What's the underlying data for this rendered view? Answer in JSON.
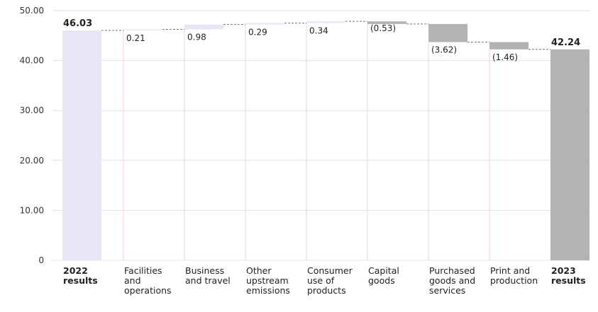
{
  "chart_data": {
    "type": "bar",
    "subtype": "waterfall",
    "title": "",
    "xlabel": "",
    "ylabel": "",
    "ylim": [
      0,
      50
    ],
    "yticks": [
      "0",
      "10.00",
      "20.00",
      "30.00",
      "40.00",
      "50.00"
    ],
    "grid": true,
    "categories": [
      {
        "label": [
          "2022",
          "results"
        ],
        "kind": "total",
        "value": 46.03,
        "display": "46.03"
      },
      {
        "label": [
          "Facilities",
          "and",
          "operations"
        ],
        "kind": "delta",
        "value": 0.21,
        "display": "0.21"
      },
      {
        "label": [
          "Business",
          "and travel"
        ],
        "kind": "delta",
        "value": 0.98,
        "display": "0.98"
      },
      {
        "label": [
          "Other",
          "upstream",
          "emissions"
        ],
        "kind": "delta",
        "value": 0.29,
        "display": "0.29"
      },
      {
        "label": [
          "Consumer",
          "use of",
          "products"
        ],
        "kind": "delta",
        "value": 0.34,
        "display": "0.34"
      },
      {
        "label": [
          "Capital",
          "goods"
        ],
        "kind": "delta",
        "value": -0.53,
        "display": "(0.53)"
      },
      {
        "label": [
          "Purchased",
          "goods and",
          "services"
        ],
        "kind": "delta",
        "value": -3.62,
        "display": "(3.62)"
      },
      {
        "label": [
          "Print and",
          "production"
        ],
        "kind": "delta",
        "value": -1.46,
        "display": "(1.46)"
      },
      {
        "label": [
          "2023",
          "results"
        ],
        "kind": "total",
        "value": 42.24,
        "display": "42.24"
      }
    ],
    "colors": {
      "increase": "#e6e6f5",
      "decrease": "#b3b3b3",
      "total_start": "#e6e6f5",
      "total_end": "#b3b3b3",
      "gridline": "#e3e3e3",
      "guide": "#f6d3bf",
      "connector": "#777777"
    }
  }
}
